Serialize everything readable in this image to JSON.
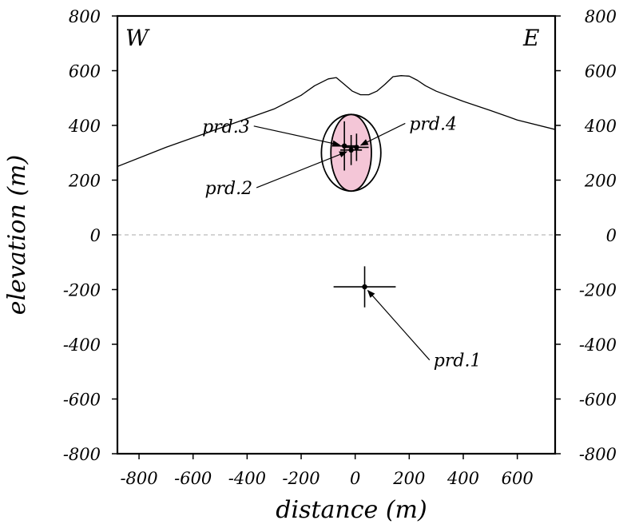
{
  "chart_data": {
    "type": "scatter",
    "title": "",
    "xlabel": "distance (m)",
    "ylabel": "elevation (m)",
    "xlim": [
      -880,
      740
    ],
    "ylim": [
      -800,
      800
    ],
    "x_ticks": [
      -800,
      -600,
      -400,
      -200,
      0,
      200,
      400,
      600
    ],
    "y_ticks": [
      -800,
      -600,
      -400,
      -200,
      0,
      200,
      400,
      600,
      800
    ],
    "corner_labels": {
      "left": "W",
      "right": "E"
    },
    "zero_line": {
      "y": 0,
      "style": "dashed"
    },
    "colors": {
      "ellipse_fill": "#f4c6d7",
      "axis": "#000000",
      "zero_line": "#bbbbbb"
    },
    "topography": {
      "x": [
        -880,
        -700,
        -500,
        -300,
        -200,
        -150,
        -100,
        -70,
        -40,
        -10,
        20,
        50,
        80,
        110,
        140,
        170,
        200,
        230,
        260,
        300,
        400,
        500,
        600,
        740
      ],
      "y": [
        250,
        320,
        390,
        460,
        510,
        545,
        570,
        575,
        550,
        525,
        512,
        512,
        525,
        550,
        578,
        582,
        580,
        565,
        545,
        525,
        488,
        455,
        420,
        385
      ]
    },
    "error_ellipses": [
      {
        "name": "outer",
        "cx": -15,
        "cy": 300,
        "rx": 110,
        "ry": 140,
        "filled": false
      },
      {
        "name": "inner",
        "cx": -15,
        "cy": 300,
        "rx": 75,
        "ry": 140,
        "filled": true
      }
    ],
    "points": [
      {
        "label": "prd.1",
        "x": 35,
        "y": -190,
        "x_err": 115,
        "y_err": 75,
        "label_x": 290,
        "label_y": -475
      },
      {
        "label": "prd.2",
        "x": -15,
        "y": 310,
        "x_err": 40,
        "y_err": 55,
        "label_x": -380,
        "label_y": 155
      },
      {
        "label": "prd.3",
        "x": -40,
        "y": 325,
        "x_err": 45,
        "y_err": 90,
        "label_x": -390,
        "label_y": 380
      },
      {
        "label": "prd.4",
        "x": 5,
        "y": 320,
        "x_err": 45,
        "y_err": 50,
        "label_x": 200,
        "label_y": 390
      }
    ]
  }
}
